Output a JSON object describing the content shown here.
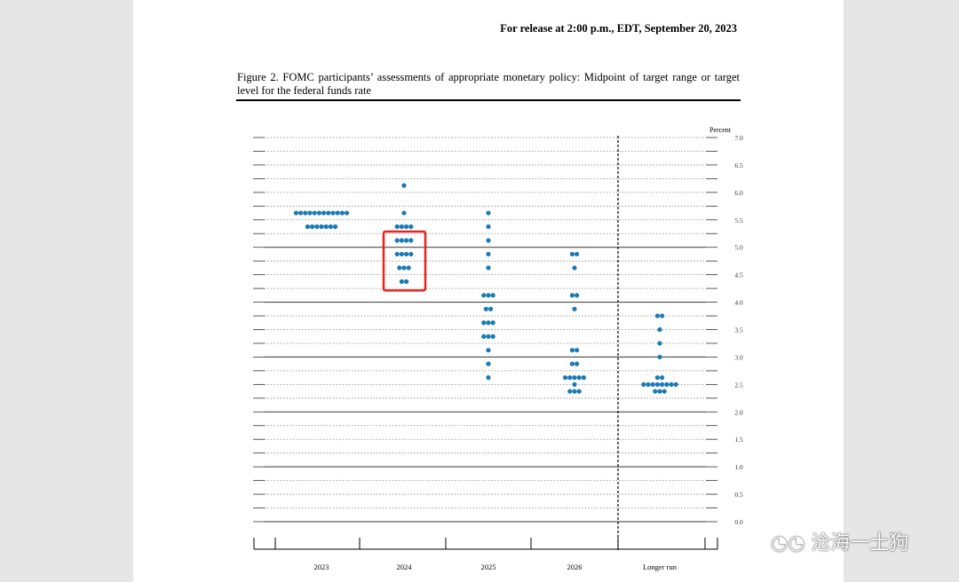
{
  "header": {
    "release": "For release at 2:00 p.m., EDT, September 20, 2023"
  },
  "caption": "Figure 2.  FOMC participants’ assessments of appropriate monetary policy: Midpoint of target range or target level for the federal funds rate",
  "watermark": "沧海一土狗",
  "chart_data": {
    "type": "scatter",
    "ylabel": "Percent",
    "ylim": [
      0,
      7
    ],
    "yticks": [
      "0.0",
      "0.5",
      "1.0",
      "1.5",
      "2.0",
      "2.5",
      "3.0",
      "3.5",
      "4.0",
      "4.5",
      "5.0",
      "5.5",
      "6.0",
      "6.5",
      "7.0"
    ],
    "categories": [
      "2023",
      "2024",
      "2025",
      "2026",
      "Longer run"
    ],
    "dot_color": "#1a7ab5",
    "highlight_color": "#e8231c",
    "highlight": {
      "category": "2024",
      "y_range": [
        4.375,
        5.125
      ]
    },
    "dots": [
      [
        [
          5.625,
          12
        ],
        [
          5.375,
          7
        ]
      ],
      [
        [
          6.125,
          1
        ],
        [
          5.625,
          1
        ],
        [
          5.375,
          4
        ],
        [
          5.125,
          4
        ],
        [
          4.875,
          4
        ],
        [
          4.625,
          3
        ],
        [
          4.375,
          2
        ]
      ],
      [
        [
          5.625,
          1
        ],
        [
          5.375,
          1
        ],
        [
          5.125,
          1
        ],
        [
          4.875,
          1
        ],
        [
          4.625,
          1
        ],
        [
          4.125,
          3
        ],
        [
          3.875,
          2
        ],
        [
          3.625,
          3
        ],
        [
          3.375,
          3
        ],
        [
          3.125,
          1
        ],
        [
          2.875,
          1
        ],
        [
          2.625,
          1
        ]
      ],
      [
        [
          4.875,
          2
        ],
        [
          4.625,
          1
        ],
        [
          4.125,
          2
        ],
        [
          3.875,
          1
        ],
        [
          3.125,
          2
        ],
        [
          2.875,
          2
        ],
        [
          2.625,
          5
        ],
        [
          2.5,
          1
        ],
        [
          2.375,
          3
        ]
      ],
      [
        [
          3.75,
          2
        ],
        [
          3.5,
          1
        ],
        [
          3.25,
          1
        ],
        [
          3.0,
          1
        ],
        [
          2.625,
          2
        ],
        [
          2.5,
          8
        ],
        [
          2.375,
          3
        ]
      ]
    ]
  }
}
